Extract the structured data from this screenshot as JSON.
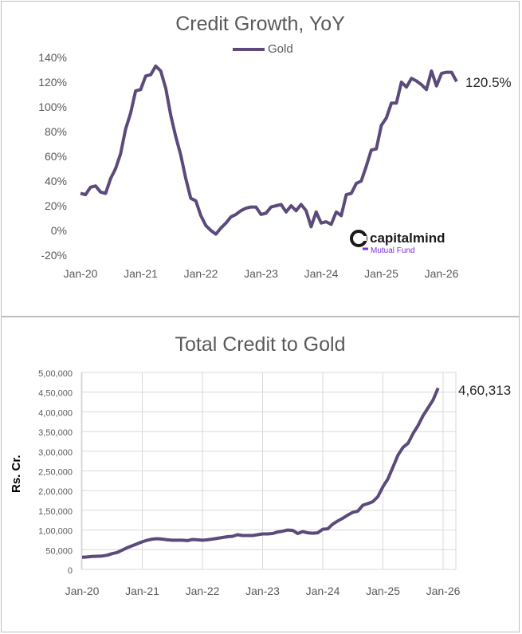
{
  "chart_data": [
    {
      "type": "line",
      "title": "Credit Growth, YoY",
      "series": [
        {
          "name": "Gold",
          "color": "#5b4a7a",
          "values": [
            0.3,
            0.29,
            0.35,
            0.36,
            0.31,
            0.3,
            0.42,
            0.5,
            0.62,
            0.82,
            0.95,
            1.13,
            1.14,
            1.25,
            1.26,
            1.33,
            1.29,
            1.15,
            0.93,
            0.76,
            0.61,
            0.42,
            0.26,
            0.24,
            0.12,
            0.04,
            0.0,
            -0.03,
            0.02,
            0.06,
            0.11,
            0.13,
            0.16,
            0.18,
            0.19,
            0.19,
            0.13,
            0.14,
            0.19,
            0.2,
            0.21,
            0.15,
            0.2,
            0.16,
            0.21,
            0.16,
            0.03,
            0.15,
            0.06,
            0.07,
            0.05,
            0.15,
            0.12,
            0.29,
            0.3,
            0.38,
            0.4,
            0.52,
            0.65,
            0.66,
            0.85,
            0.91,
            1.03,
            1.03,
            1.2,
            1.16,
            1.23,
            1.21,
            1.18,
            1.14,
            1.29,
            1.17,
            1.27,
            1.28,
            1.28,
            1.205
          ]
        }
      ],
      "x_start": "Jan-20",
      "x_end": "Apr-26",
      "xticks": [
        "Jan-20",
        "Jan-21",
        "Jan-22",
        "Jan-23",
        "Jan-24",
        "Jan-25",
        "Jan-26"
      ],
      "ylim": [
        -0.2,
        1.4
      ],
      "yticks": [
        "-20%",
        "0%",
        "20%",
        "40%",
        "60%",
        "80%",
        "100%",
        "120%",
        "140%"
      ],
      "grid": false,
      "legend": "top-center",
      "end_label": "120.5%"
    },
    {
      "type": "line",
      "title": "Total Credit to Gold",
      "series": [
        {
          "name": "Gold",
          "color": "#5b4a7a",
          "values": [
            31000,
            31500,
            33000,
            33500,
            34000,
            36000,
            40000,
            43000,
            49000,
            55000,
            60000,
            65000,
            70000,
            74000,
            77000,
            78000,
            77000,
            75000,
            74000,
            74000,
            74000,
            73000,
            76000,
            75000,
            74000,
            75000,
            77000,
            79000,
            81000,
            83000,
            84000,
            88000,
            86000,
            86000,
            86000,
            88000,
            90000,
            90000,
            91000,
            95000,
            97000,
            100000,
            99000,
            91000,
            96000,
            93000,
            92000,
            93000,
            102000,
            103000,
            115000,
            123000,
            130000,
            138000,
            145000,
            148000,
            163000,
            167000,
            172000,
            185000,
            210000,
            230000,
            260000,
            290000,
            310000,
            320000,
            345000,
            365000,
            390000,
            410000,
            430000,
            460313
          ]
        }
      ],
      "x_start": "Jan-20",
      "x_end": "Dec-25",
      "xticks": [
        "Jan-20",
        "Jan-21",
        "Jan-22",
        "Jan-23",
        "Jan-24",
        "Jan-25",
        "Jan-26"
      ],
      "ylim": [
        0,
        500000
      ],
      "yticks": [
        "0",
        "50,000",
        "1,00,000",
        "1,50,000",
        "2,00,000",
        "2,50,000",
        "3,00,000",
        "3,50,000",
        "4,00,000",
        "4,50,000",
        "5,00,000"
      ],
      "ylabel": "Rs. Cr.",
      "grid": true,
      "end_label": "4,60,313"
    }
  ],
  "logo": {
    "name": "capitalmind",
    "sub": "Mutual Fund"
  }
}
